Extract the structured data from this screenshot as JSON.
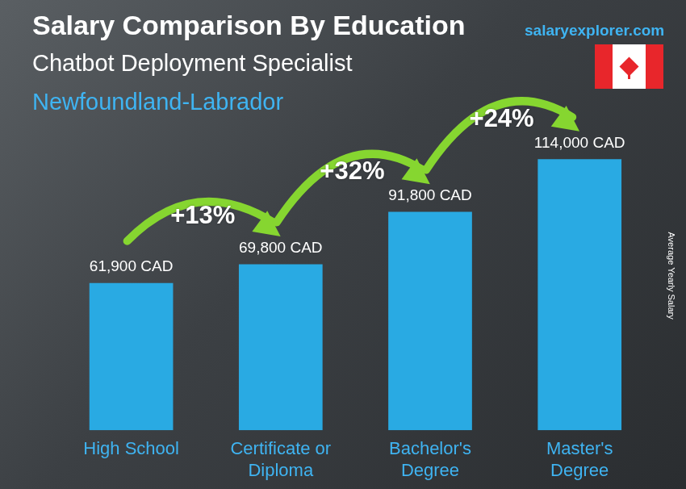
{
  "chart_data": {
    "type": "bar",
    "title": "Salary Comparison By Education",
    "subtitle": [
      "Chatbot Deployment Specialist",
      "Newfoundland-Labrador"
    ],
    "source": "salaryexplorer.com",
    "ylabel": "Average Yearly Salary",
    "categories": [
      "High School",
      "Certificate or Diploma",
      "Bachelor's Degree",
      "Master's Degree"
    ],
    "values": [
      61900,
      69800,
      91800,
      114000
    ],
    "value_labels": [
      "61,900 CAD",
      "69,800 CAD",
      "91,800 CAD",
      "114,000 CAD"
    ],
    "annotations": [
      "+13%",
      "+32%",
      "+24%"
    ],
    "color": "#29aae3",
    "ylim": [
      0,
      130000
    ],
    "grid": false,
    "data_labels": true,
    "tick_labels": "x"
  }
}
